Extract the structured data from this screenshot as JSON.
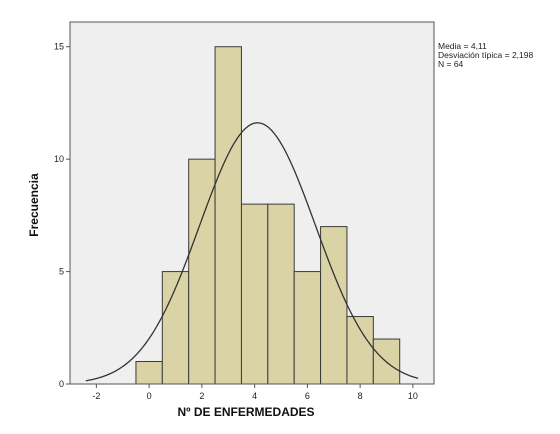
{
  "chart_data": {
    "type": "bar",
    "subtype": "histogram",
    "bins": [
      {
        "from": -0.5,
        "to": 0.5,
        "count": 1
      },
      {
        "from": 0.5,
        "to": 1.5,
        "count": 5
      },
      {
        "from": 1.5,
        "to": 2.5,
        "count": 10
      },
      {
        "from": 2.5,
        "to": 3.5,
        "count": 15
      },
      {
        "from": 3.5,
        "to": 4.5,
        "count": 8
      },
      {
        "from": 4.5,
        "to": 5.5,
        "count": 8
      },
      {
        "from": 5.5,
        "to": 6.5,
        "count": 5
      },
      {
        "from": 6.5,
        "to": 7.5,
        "count": 7
      },
      {
        "from": 7.5,
        "to": 8.5,
        "count": 3
      },
      {
        "from": 8.5,
        "to": 9.5,
        "count": 2
      }
    ],
    "normal_curve": {
      "mean": 4.11,
      "sd": 2.198,
      "n": 64,
      "bin_width": 1
    },
    "xlabel": "Nº DE ENFERMEDADES",
    "ylabel": "Frecuencia",
    "xlim": [
      -3,
      10.8
    ],
    "ylim": [
      0,
      16.1
    ],
    "xticks": [
      -2,
      0,
      2,
      4,
      6,
      8,
      10
    ],
    "yticks": [
      0,
      5,
      10,
      15
    ],
    "grid": false,
    "colors": {
      "bar_fill": "#d9d3a5",
      "bar_stroke": "#3a3a3a",
      "plot_bg": "#efefef",
      "curve": "#333333"
    }
  },
  "stats_box": {
    "line1": "Media = 4,11",
    "line2": "Desviación típica = 2,198",
    "line3": "N = 64"
  }
}
